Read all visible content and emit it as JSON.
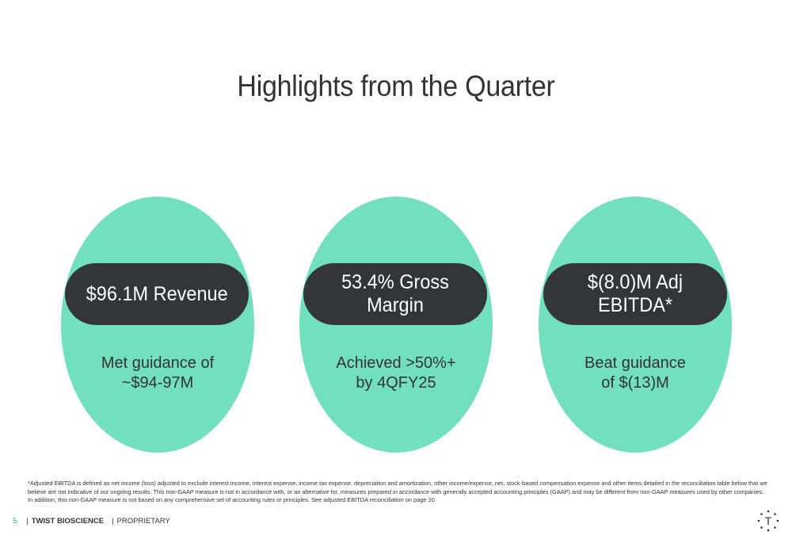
{
  "slide": {
    "title": "Highlights from the Quarter"
  },
  "highlights": [
    {
      "metric": "$96.1M Revenue",
      "note_line1": "Met guidance of",
      "note_line2": "~$94-97M"
    },
    {
      "metric": "53.4% Gross Margin",
      "note_line1": "Achieved >50%+",
      "note_line2": "by 4QFY25"
    },
    {
      "metric": "$(8.0)M Adj EBITDA*",
      "note_line1": "Beat guidance",
      "note_line2": "of $(13)M"
    }
  ],
  "footnote": "*Adjusted EBITDA is defined as net income (loss) adjusted to exclude interest income, interest expense, income tax expense, depreciation and amortization, other income/expense, net, stock-based compensation expense and other items detailed in the reconciliation table below that we believe are not indicative of our ongoing results. This non-GAAP measure is not in accordance with, or an alternative for, measures prepared in accordance with generally accepted accounting principles (GAAP) and may be different from non-GAAP measures used by other companies. In addition, this non-GAAP measure is not based on any comprehensive set of accounting rules or principles. See adjusted EBITDA reconciliation on page 20.",
  "footer": {
    "page_number": "5",
    "separator": "|",
    "company": "TWIST BIOSCIENCE",
    "label": "PROPRIETARY"
  },
  "logo": {
    "letter": "T"
  },
  "colors": {
    "circle": "#72e0bf",
    "pill": "#333639",
    "text": "#333333",
    "accent": "#2ab0a0"
  }
}
